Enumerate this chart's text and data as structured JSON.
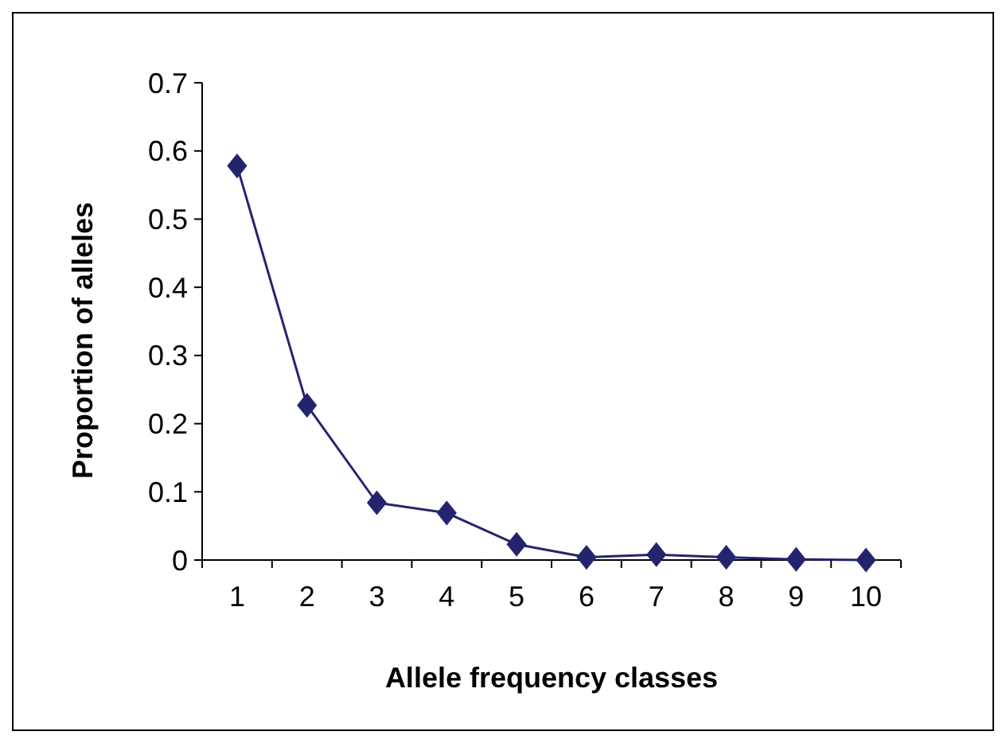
{
  "chart_data": {
    "type": "line",
    "xlabel": "Allele frequency classes",
    "ylabel": "Proportion of alleles",
    "categories": [
      "1",
      "2",
      "3",
      "4",
      "5",
      "6",
      "7",
      "8",
      "9",
      "10"
    ],
    "series": [
      {
        "color": "#24246e",
        "values": [
          0.578,
          0.227,
          0.084,
          0.069,
          0.023,
          0.004,
          0.008,
          0.004,
          0.001,
          0
        ]
      }
    ],
    "ylim": [
      0,
      0.7
    ],
    "yticks": [
      0,
      0.1,
      0.2,
      0.3,
      0.4,
      0.5,
      0.6,
      0.7
    ],
    "marker": "diamond",
    "line_style": "solid"
  }
}
